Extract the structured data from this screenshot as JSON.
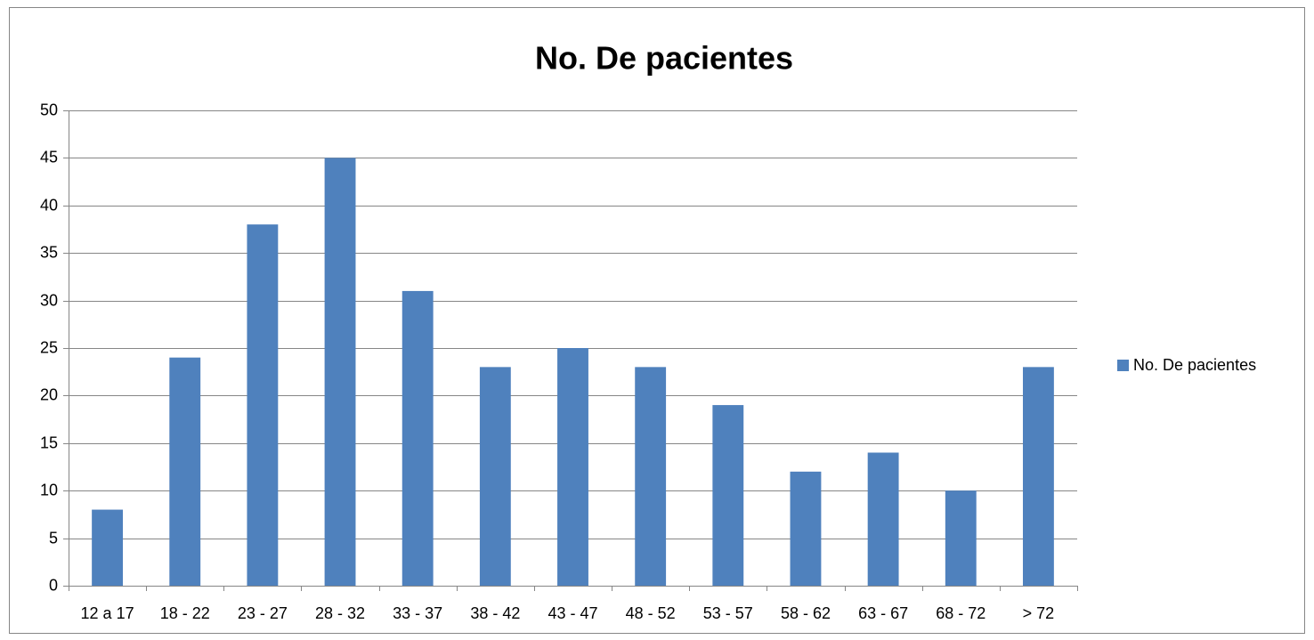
{
  "chart_data": {
    "type": "bar",
    "title": "No. De pacientes",
    "categories": [
      "12 a 17",
      "18 - 22",
      "23 - 27",
      "28 - 32",
      "33 - 37",
      "38 - 42",
      "43 - 47",
      "48 - 52",
      "53 - 57",
      "58 - 62",
      "63 - 67",
      "68 - 72",
      "> 72"
    ],
    "series": [
      {
        "name": "No. De pacientes",
        "color": "#4f81bd",
        "values": [
          8,
          24,
          38,
          45,
          31,
          23,
          25,
          23,
          19,
          12,
          14,
          10,
          23
        ]
      }
    ],
    "ylim": [
      0,
      50
    ],
    "yticks": [
      0,
      5,
      10,
      15,
      20,
      25,
      30,
      35,
      40,
      45,
      50
    ],
    "grid": true,
    "legend": "right"
  }
}
